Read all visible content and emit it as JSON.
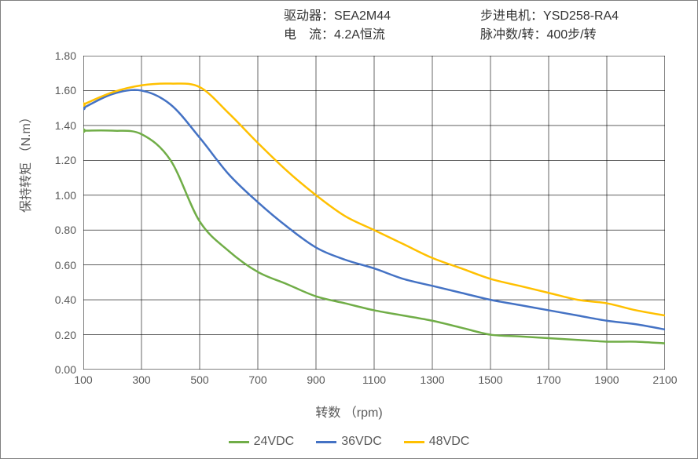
{
  "header": {
    "driver_label": "驱动器：",
    "driver_value": "SEA2M44",
    "motor_label": "步进电机：",
    "motor_value": "YSD258-RA4",
    "current_label": "电　流：",
    "current_value": "4.2A恒流",
    "pulse_label": "脉冲数/转：",
    "pulse_value": "400步/转"
  },
  "chart": {
    "type": "line",
    "xlabel": "转数 （rpm)",
    "ylabel": "保持转矩 （N.m）",
    "xlim": [
      100,
      2100
    ],
    "ylim": [
      0,
      1.8
    ],
    "xticks": [
      100,
      300,
      500,
      700,
      900,
      1100,
      1300,
      1500,
      1700,
      1900,
      2100
    ],
    "yticks": [
      0.0,
      0.2,
      0.4,
      0.6,
      0.8,
      1.0,
      1.2,
      1.4,
      1.6,
      1.8
    ],
    "ytick_labels": [
      "0.00",
      "0.20",
      "0.40",
      "0.60",
      "0.80",
      "1.00",
      "1.20",
      "1.40",
      "1.60",
      "1.80"
    ],
    "grid_color": "#000000",
    "grid_width": 0.6,
    "background": "#ffffff",
    "line_width": 2.5,
    "legend_position": "bottom",
    "series": [
      {
        "name": "24VDC",
        "color": "#70ad47",
        "x": [
          100,
          200,
          300,
          400,
          500,
          600,
          700,
          800,
          900,
          1000,
          1100,
          1200,
          1300,
          1400,
          1500,
          1600,
          1700,
          1800,
          1900,
          2000,
          2100
        ],
        "y": [
          1.37,
          1.37,
          1.35,
          1.2,
          0.85,
          0.68,
          0.56,
          0.49,
          0.42,
          0.38,
          0.34,
          0.31,
          0.28,
          0.24,
          0.2,
          0.19,
          0.18,
          0.17,
          0.16,
          0.16,
          0.15
        ]
      },
      {
        "name": "36VDC",
        "color": "#4472c4",
        "x": [
          100,
          200,
          300,
          400,
          500,
          600,
          700,
          800,
          900,
          1000,
          1100,
          1200,
          1300,
          1400,
          1500,
          1600,
          1700,
          1800,
          1900,
          2000,
          2100
        ],
        "y": [
          1.5,
          1.58,
          1.6,
          1.52,
          1.33,
          1.12,
          0.96,
          0.82,
          0.7,
          0.63,
          0.58,
          0.52,
          0.48,
          0.44,
          0.4,
          0.37,
          0.34,
          0.31,
          0.28,
          0.26,
          0.23
        ]
      },
      {
        "name": "48VDC",
        "color": "#ffc000",
        "x": [
          100,
          200,
          300,
          400,
          500,
          600,
          700,
          800,
          900,
          1000,
          1100,
          1200,
          1300,
          1400,
          1500,
          1600,
          1700,
          1800,
          1900,
          2000,
          2100
        ],
        "y": [
          1.52,
          1.59,
          1.63,
          1.64,
          1.62,
          1.47,
          1.3,
          1.14,
          1.0,
          0.88,
          0.8,
          0.72,
          0.64,
          0.58,
          0.52,
          0.48,
          0.44,
          0.4,
          0.38,
          0.34,
          0.31
        ]
      }
    ]
  }
}
